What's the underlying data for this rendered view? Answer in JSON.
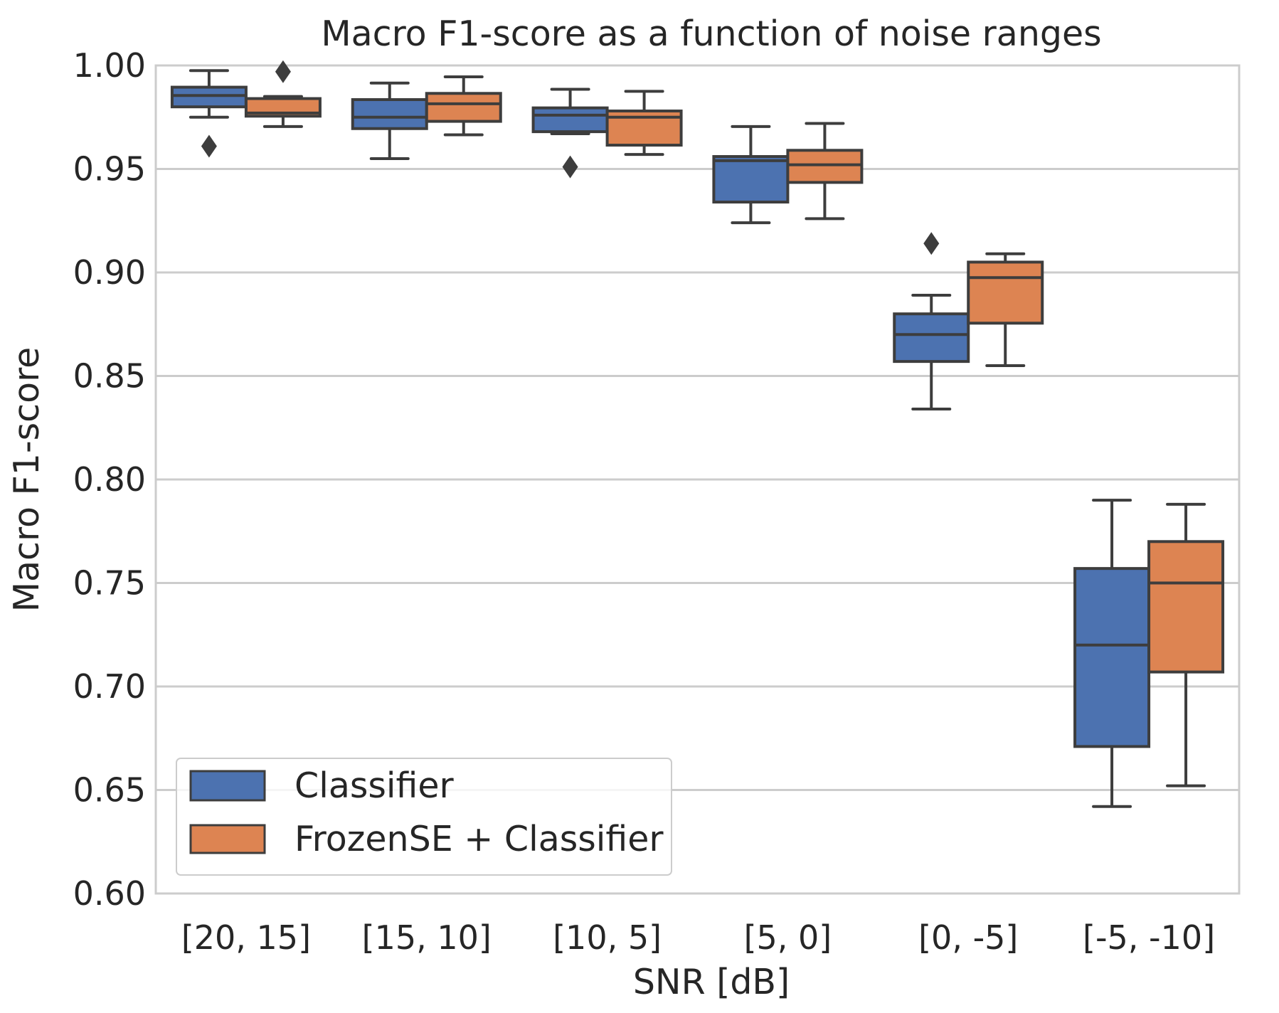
{
  "chart_data": {
    "type": "box",
    "title": "Macro F1-score as a function of noise ranges",
    "xlabel": "SNR [dB]",
    "ylabel": "Macro F1-score",
    "ylim": [
      0.6,
      1.0
    ],
    "yticks": [
      "0.60",
      "0.65",
      "0.70",
      "0.75",
      "0.80",
      "0.85",
      "0.90",
      "0.95",
      "1.00"
    ],
    "categories": [
      "[20, 15]",
      "[15, 10]",
      "[10, 5]",
      "[5, 0]",
      "[0, -5]",
      "[-5, -10]"
    ],
    "grid": true,
    "legend_position": "lower-left",
    "series": [
      {
        "name": "Classifier",
        "color": "#4c72b0",
        "boxes": [
          {
            "whisker_low": 0.975,
            "q1": 0.98,
            "median": 0.9855,
            "q3": 0.9895,
            "whisker_high": 0.9975,
            "outliers": [
              0.961
            ]
          },
          {
            "whisker_low": 0.955,
            "q1": 0.9695,
            "median": 0.975,
            "q3": 0.9835,
            "whisker_high": 0.9915,
            "outliers": []
          },
          {
            "whisker_low": 0.967,
            "q1": 0.968,
            "median": 0.976,
            "q3": 0.9795,
            "whisker_high": 0.9885,
            "outliers": [
              0.951
            ]
          },
          {
            "whisker_low": 0.924,
            "q1": 0.934,
            "median": 0.954,
            "q3": 0.956,
            "whisker_high": 0.9705,
            "outliers": []
          },
          {
            "whisker_low": 0.834,
            "q1": 0.857,
            "median": 0.87,
            "q3": 0.88,
            "whisker_high": 0.889,
            "outliers": [
              0.914
            ]
          },
          {
            "whisker_low": 0.642,
            "q1": 0.671,
            "median": 0.72,
            "q3": 0.757,
            "whisker_high": 0.79,
            "outliers": []
          }
        ]
      },
      {
        "name": "FrozenSE + Classifier",
        "color": "#dd8452",
        "boxes": [
          {
            "whisker_low": 0.9705,
            "q1": 0.9755,
            "median": 0.977,
            "q3": 0.984,
            "whisker_high": 0.985,
            "outliers": [
              0.997
            ]
          },
          {
            "whisker_low": 0.9665,
            "q1": 0.973,
            "median": 0.9815,
            "q3": 0.9865,
            "whisker_high": 0.9945,
            "outliers": []
          },
          {
            "whisker_low": 0.957,
            "q1": 0.9615,
            "median": 0.975,
            "q3": 0.978,
            "whisker_high": 0.9875,
            "outliers": []
          },
          {
            "whisker_low": 0.926,
            "q1": 0.9435,
            "median": 0.952,
            "q3": 0.959,
            "whisker_high": 0.972,
            "outliers": []
          },
          {
            "whisker_low": 0.855,
            "q1": 0.8755,
            "median": 0.8975,
            "q3": 0.905,
            "whisker_high": 0.909,
            "outliers": []
          },
          {
            "whisker_low": 0.652,
            "q1": 0.707,
            "median": 0.75,
            "q3": 0.77,
            "whisker_high": 0.788,
            "outliers": []
          }
        ]
      }
    ]
  }
}
